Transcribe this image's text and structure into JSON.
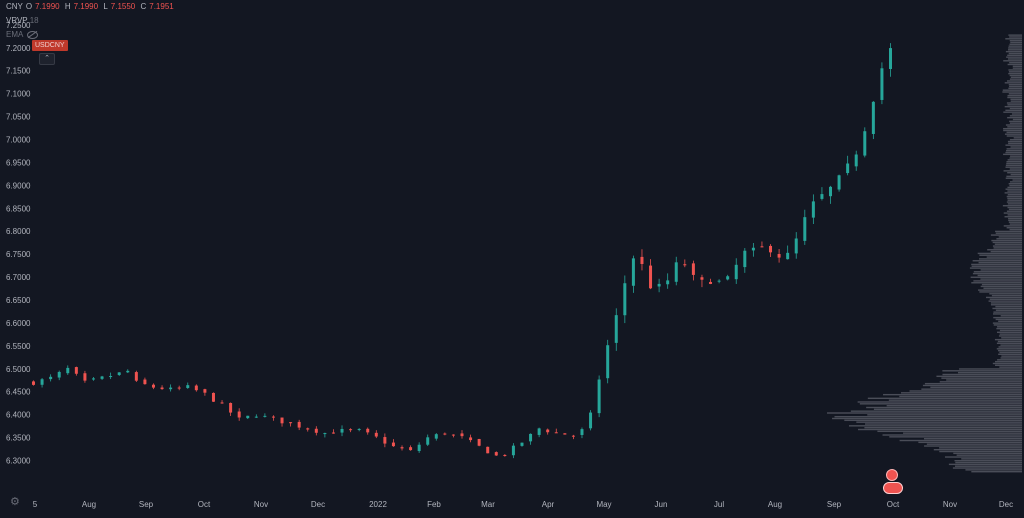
{
  "legend": {
    "symbol_label": "CNY",
    "open_key": "O",
    "open": "7.1990",
    "high_key": "H",
    "high": "7.1990",
    "low_key": "L",
    "low": "7.1550",
    "close_key": "C",
    "close": "7.1951",
    "vrvp_name": "VRVP",
    "vrvp_value": "18",
    "ema_name": "EMA",
    "ticker": "USDCNY"
  },
  "colors": {
    "background": "#131722",
    "up": "#26a69a",
    "down": "#ef5350",
    "grid": "#1e222d",
    "profile": "#5d606b"
  },
  "chart_data": {
    "type": "candlestick",
    "ylim": [
      6.275,
      7.265
    ],
    "y_ticks": [
      "7.2500",
      "7.2000",
      "7.1500",
      "7.1000",
      "7.0500",
      "7.0000",
      "6.9500",
      "6.9000",
      "6.8500",
      "6.8000",
      "6.7500",
      "6.7000",
      "6.6500",
      "6.6000",
      "6.5500",
      "6.5000",
      "6.4500",
      "6.4000",
      "6.3500",
      "6.3000"
    ],
    "x_ticks": [
      "5",
      "Aug",
      "Sep",
      "Oct",
      "Nov",
      "Dec",
      "2022",
      "Feb",
      "Mar",
      "Apr",
      "May",
      "Jun",
      "Jul",
      "Aug",
      "Sep",
      "Oct",
      "Nov",
      "Dec"
    ],
    "close_path": [
      [
        0,
        6.47
      ],
      [
        10,
        6.48
      ],
      [
        20,
        6.5
      ],
      [
        30,
        6.47
      ],
      [
        40,
        6.48
      ],
      [
        55,
        6.495
      ],
      [
        60,
        6.47
      ],
      [
        70,
        6.46
      ],
      [
        80,
        6.455
      ],
      [
        90,
        6.46
      ],
      [
        100,
        6.445
      ],
      [
        110,
        6.42
      ],
      [
        120,
        6.39
      ],
      [
        130,
        6.4
      ],
      [
        140,
        6.39
      ],
      [
        150,
        6.38
      ],
      [
        160,
        6.37
      ],
      [
        170,
        6.36
      ],
      [
        180,
        6.365
      ],
      [
        190,
        6.365
      ],
      [
        200,
        6.35
      ],
      [
        210,
        6.33
      ],
      [
        220,
        6.32
      ],
      [
        230,
        6.35
      ],
      [
        240,
        6.36
      ],
      [
        250,
        6.35
      ],
      [
        260,
        6.33
      ],
      [
        270,
        6.31
      ],
      [
        275,
        6.315
      ],
      [
        285,
        6.34
      ],
      [
        295,
        6.37
      ],
      [
        305,
        6.36
      ],
      [
        315,
        6.355
      ],
      [
        322,
        6.37
      ],
      [
        327,
        6.42
      ],
      [
        332,
        6.52
      ],
      [
        337,
        6.57
      ],
      [
        342,
        6.64
      ],
      [
        347,
        6.72
      ],
      [
        352,
        6.76
      ],
      [
        357,
        6.7
      ],
      [
        362,
        6.67
      ],
      [
        367,
        6.68
      ],
      [
        372,
        6.7
      ],
      [
        377,
        6.74
      ],
      [
        382,
        6.72
      ],
      [
        387,
        6.68
      ],
      [
        392,
        6.69
      ],
      [
        397,
        6.7
      ],
      [
        402,
        6.68
      ],
      [
        407,
        6.7
      ],
      [
        412,
        6.74
      ],
      [
        417,
        6.76
      ],
      [
        422,
        6.75
      ],
      [
        427,
        6.77
      ],
      [
        432,
        6.76
      ],
      [
        437,
        6.74
      ],
      [
        442,
        6.75
      ],
      [
        447,
        6.8
      ],
      [
        452,
        6.84
      ],
      [
        457,
        6.87
      ],
      [
        462,
        6.88
      ],
      [
        467,
        6.9
      ],
      [
        472,
        6.92
      ],
      [
        477,
        6.95
      ],
      [
        482,
        6.99
      ],
      [
        487,
        7.05
      ],
      [
        492,
        7.12
      ],
      [
        497,
        7.18
      ],
      [
        500,
        7.195
      ]
    ],
    "series_days": 500,
    "volume_profile": "VRVP",
    "grid": false
  }
}
